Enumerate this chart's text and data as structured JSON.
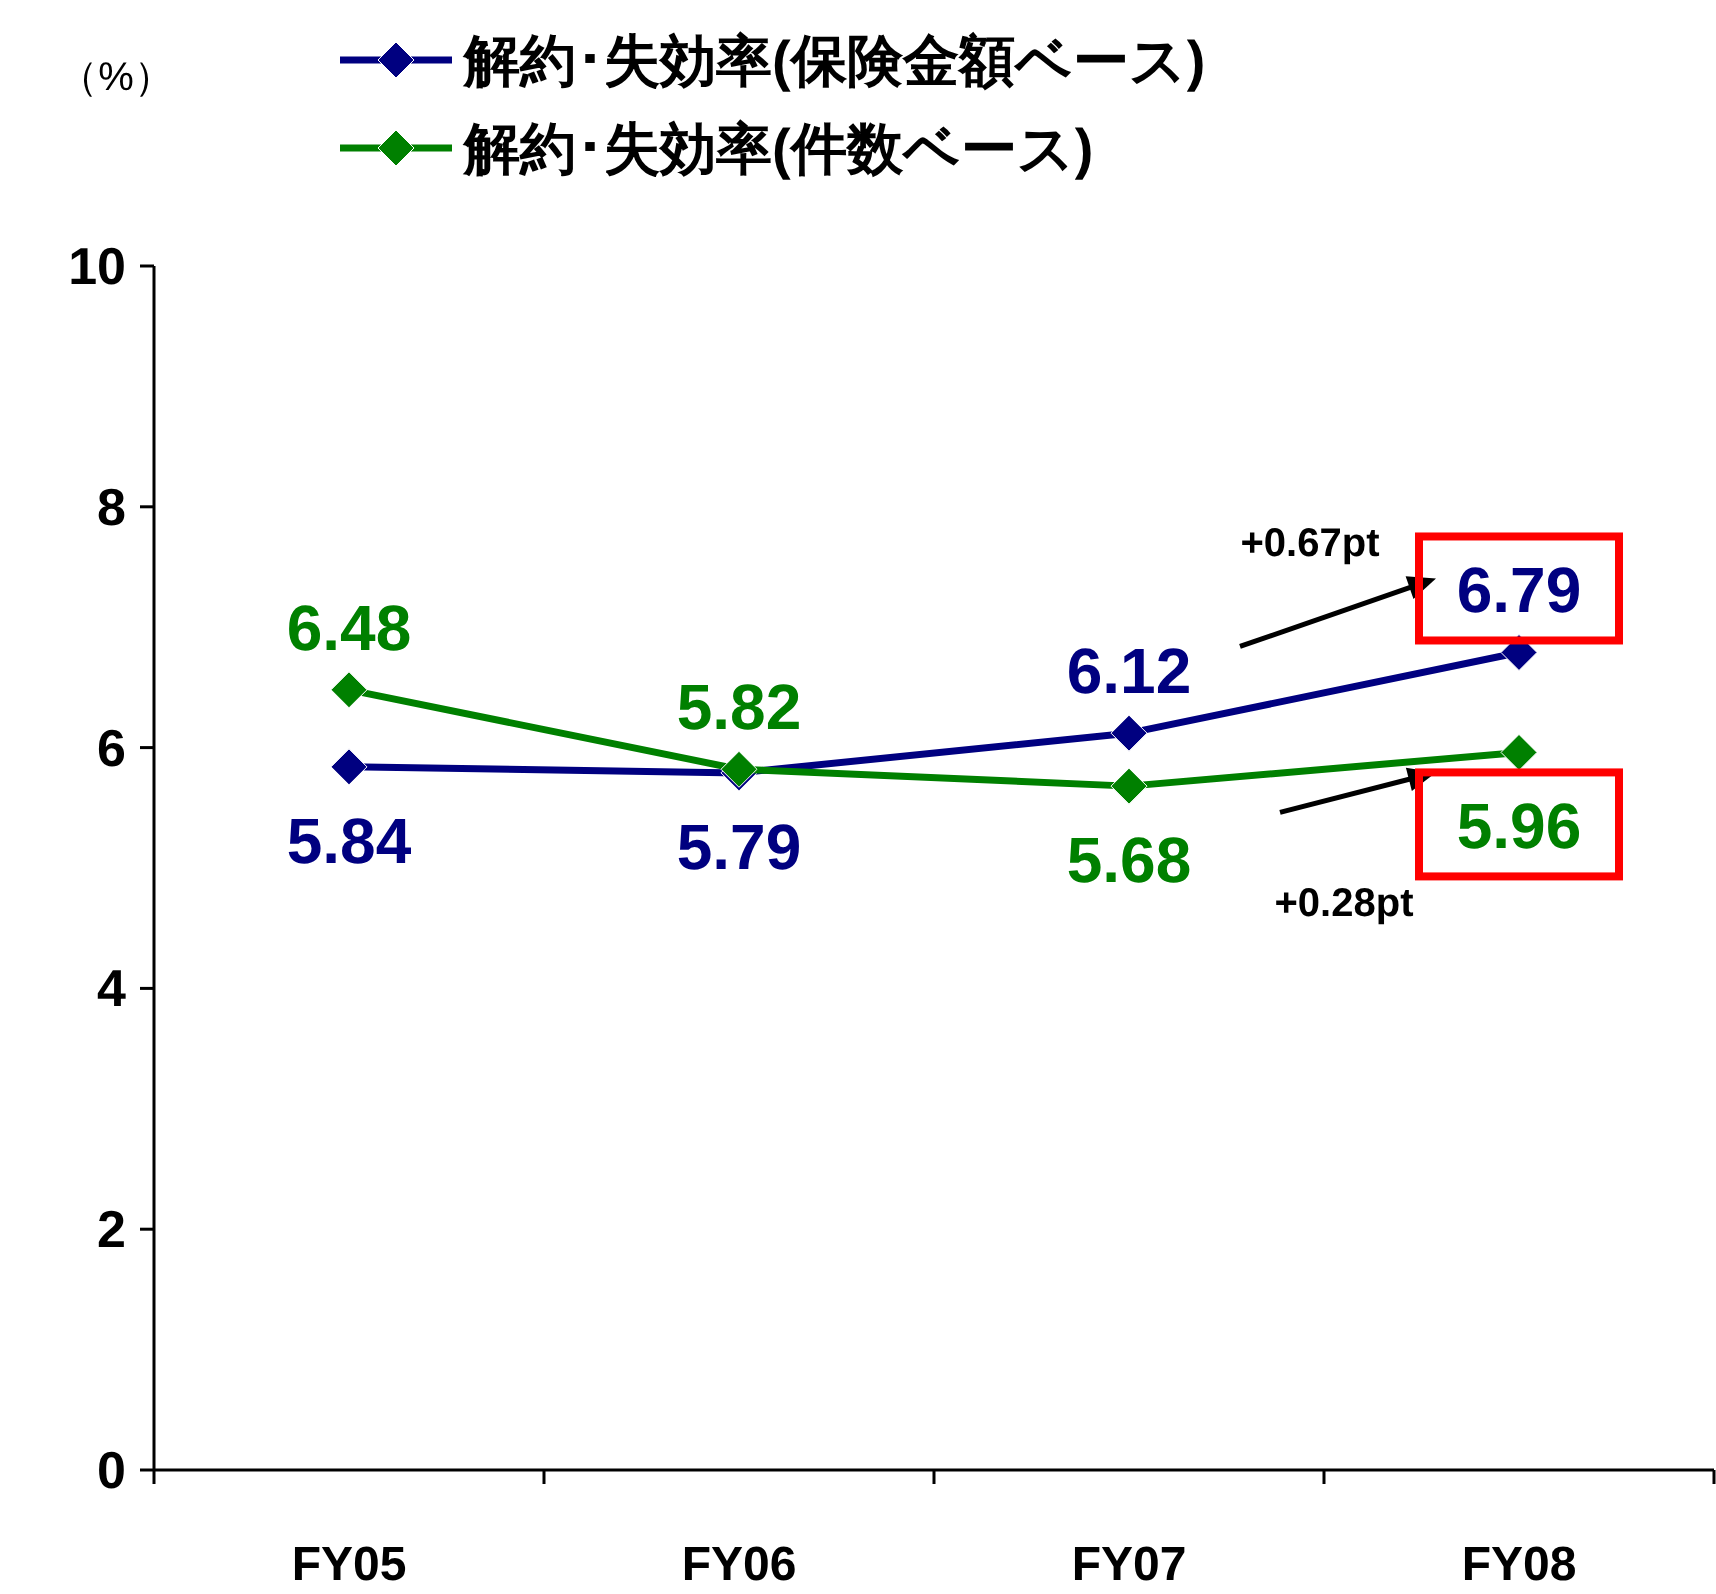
{
  "chart_data": {
    "type": "line",
    "ylabel": "（%）",
    "categories": [
      "FY05",
      "FY06",
      "FY07",
      "FY08"
    ],
    "series": [
      {
        "name": "解約･失効率(保険金額ベース)",
        "color": "#000080",
        "values": [
          5.84,
          5.79,
          6.12,
          6.79
        ]
      },
      {
        "name": "解約･失効率(件数ベース)",
        "color": "#008000",
        "values": [
          6.48,
          5.82,
          5.68,
          5.96
        ]
      }
    ],
    "ylim": [
      0,
      10
    ],
    "yticks": [
      0,
      2,
      4,
      6,
      8,
      10
    ],
    "data_labels": true,
    "marker": "diamond",
    "line_style": "solid",
    "grid": false,
    "legend": "top",
    "annotations": [
      "+0.67pt",
      "+0.28pt"
    ]
  }
}
